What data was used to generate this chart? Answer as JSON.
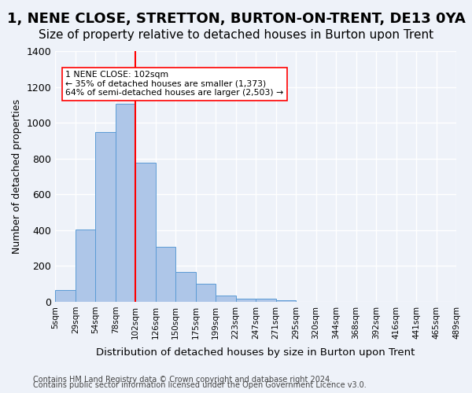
{
  "title": "1, NENE CLOSE, STRETTON, BURTON-ON-TRENT, DE13 0YA",
  "subtitle": "Size of property relative to detached houses in Burton upon Trent",
  "xlabel": "Distribution of detached houses by size in Burton upon Trent",
  "ylabel": "Number of detached properties",
  "footnote1": "Contains HM Land Registry data © Crown copyright and database right 2024.",
  "footnote2": "Contains public sector information licensed under the Open Government Licence v3.0.",
  "annotation_line1": "1 NENE CLOSE: 102sqm",
  "annotation_line2": "← 35% of detached houses are smaller (1,373)",
  "annotation_line3": "64% of semi-detached houses are larger (2,503) →",
  "property_size": 102,
  "bin_labels": [
    "5sqm",
    "29sqm",
    "54sqm",
    "78sqm",
    "102sqm",
    "126sqm",
    "150sqm",
    "175sqm",
    "199sqm",
    "223sqm",
    "247sqm",
    "271sqm",
    "295sqm",
    "320sqm",
    "344sqm",
    "368sqm",
    "392sqm",
    "416sqm",
    "441sqm",
    "465sqm",
    "489sqm"
  ],
  "bar_values": [
    65,
    405,
    950,
    1105,
    775,
    305,
    165,
    100,
    35,
    18,
    18,
    10,
    0,
    0,
    0,
    0,
    0,
    0,
    0,
    0
  ],
  "bar_color": "#aec6e8",
  "bar_edge_color": "#5b9bd5",
  "red_line_x": 4,
  "ylim": [
    0,
    1400
  ],
  "yticks": [
    0,
    200,
    400,
    600,
    800,
    1000,
    1200,
    1400
  ],
  "background_color": "#eef2f9",
  "grid_color": "#ffffff",
  "title_fontsize": 13,
  "subtitle_fontsize": 11
}
